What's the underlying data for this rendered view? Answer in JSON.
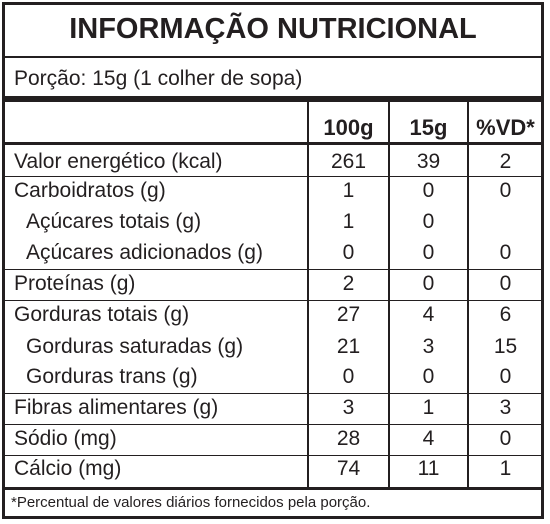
{
  "title": "INFORMAÇÃO NUTRICIONAL",
  "portion": "Porção: 15g (1 colher de sopa)",
  "headers": {
    "col1": "100g",
    "col2": "15g",
    "col3": "%VD*"
  },
  "rows": [
    {
      "label": "Valor energético (kcal)",
      "v100": "261",
      "v15": "39",
      "vd": "2"
    },
    {
      "label": "Carboidratos (g)",
      "v100": "1",
      "v15": "0",
      "vd": "0"
    },
    {
      "label": "Açúcares totais (g)",
      "v100": "1",
      "v15": "0",
      "vd": ""
    },
    {
      "label": "Açúcares adicionados (g)",
      "v100": "0",
      "v15": "0",
      "vd": "0"
    },
    {
      "label": "Proteínas (g)",
      "v100": "2",
      "v15": "0",
      "vd": "0"
    },
    {
      "label": "Gorduras totais (g)",
      "v100": "27",
      "v15": "4",
      "vd": "6"
    },
    {
      "label": "Gorduras saturadas (g)",
      "v100": "21",
      "v15": "3",
      "vd": "15"
    },
    {
      "label": "Gorduras trans (g)",
      "v100": "0",
      "v15": "0",
      "vd": "0"
    },
    {
      "label": "Fibras alimentares (g)",
      "v100": "3",
      "v15": "1",
      "vd": "3"
    },
    {
      "label": "Sódio (mg)",
      "v100": "28",
      "v15": "4",
      "vd": "0"
    },
    {
      "label": "Cálcio (mg)",
      "v100": "74",
      "v15": "11",
      "vd": "1"
    }
  ],
  "footnote": "*Percentual de valores diários fornecidos pela porção."
}
